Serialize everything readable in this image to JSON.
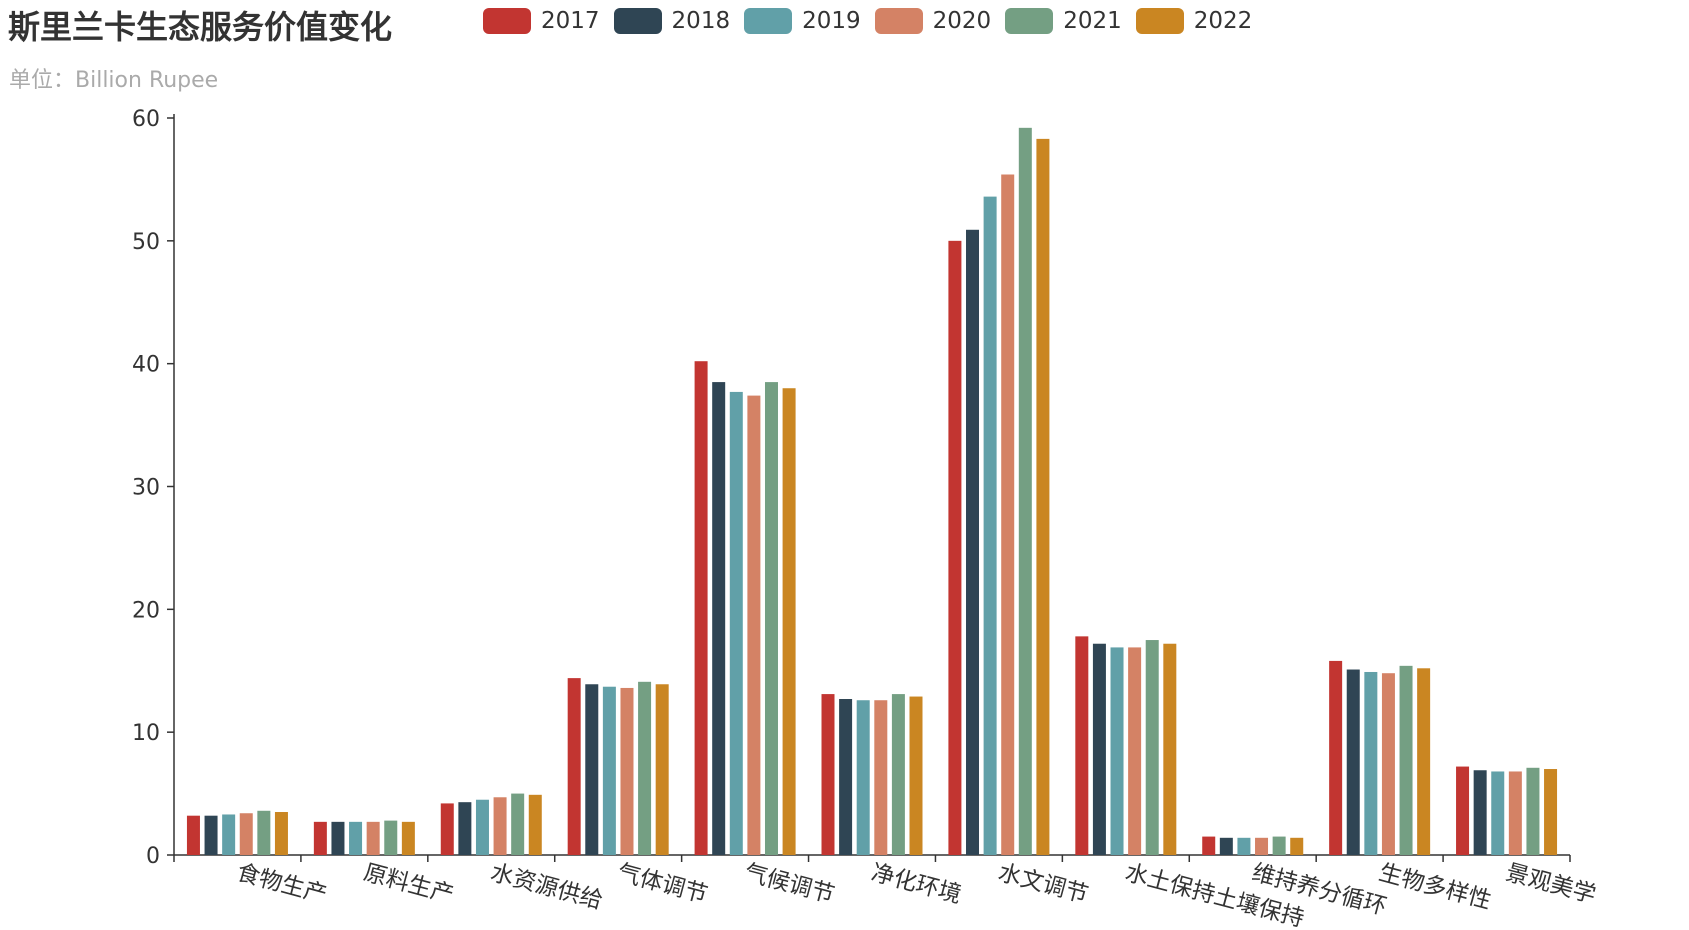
{
  "chart_data": {
    "type": "bar",
    "title": "斯里兰卡生态服务价值变化",
    "subtitle": "单位：Billion Rupee",
    "categories": [
      "食物生产",
      "原料生产",
      "水资源供给",
      "气体调节",
      "气候调节",
      "净化环境",
      "水文调节",
      "水土保持土壤保持",
      "维持养分循环",
      "生物多样性",
      "景观美学"
    ],
    "ylim": [
      0,
      60
    ],
    "yticks": [
      0,
      10,
      20,
      30,
      40,
      50,
      60
    ],
    "legend_position": "top",
    "grid": false,
    "series": [
      {
        "name": "2017",
        "color": "#c23531",
        "values": [
          3.2,
          2.7,
          4.2,
          14.4,
          40.2,
          13.1,
          50.0,
          17.8,
          1.5,
          15.8,
          7.2
        ]
      },
      {
        "name": "2018",
        "color": "#2f4554",
        "values": [
          3.2,
          2.7,
          4.3,
          13.9,
          38.5,
          12.7,
          50.9,
          17.2,
          1.4,
          15.1,
          6.9
        ]
      },
      {
        "name": "2019",
        "color": "#61a0a8",
        "values": [
          3.3,
          2.7,
          4.5,
          13.7,
          37.7,
          12.6,
          53.6,
          16.9,
          1.4,
          14.9,
          6.8
        ]
      },
      {
        "name": "2020",
        "color": "#d48265",
        "values": [
          3.4,
          2.7,
          4.7,
          13.6,
          37.4,
          12.6,
          55.4,
          16.9,
          1.4,
          14.8,
          6.8
        ]
      },
      {
        "name": "2021",
        "color": "#749f83",
        "values": [
          3.6,
          2.8,
          5.0,
          14.1,
          38.5,
          13.1,
          59.2,
          17.5,
          1.5,
          15.4,
          7.1
        ]
      },
      {
        "name": "2022",
        "color": "#ca8622",
        "values": [
          3.5,
          2.7,
          4.9,
          13.9,
          38.0,
          12.9,
          58.3,
          17.2,
          1.4,
          15.2,
          7.0
        ]
      }
    ]
  }
}
